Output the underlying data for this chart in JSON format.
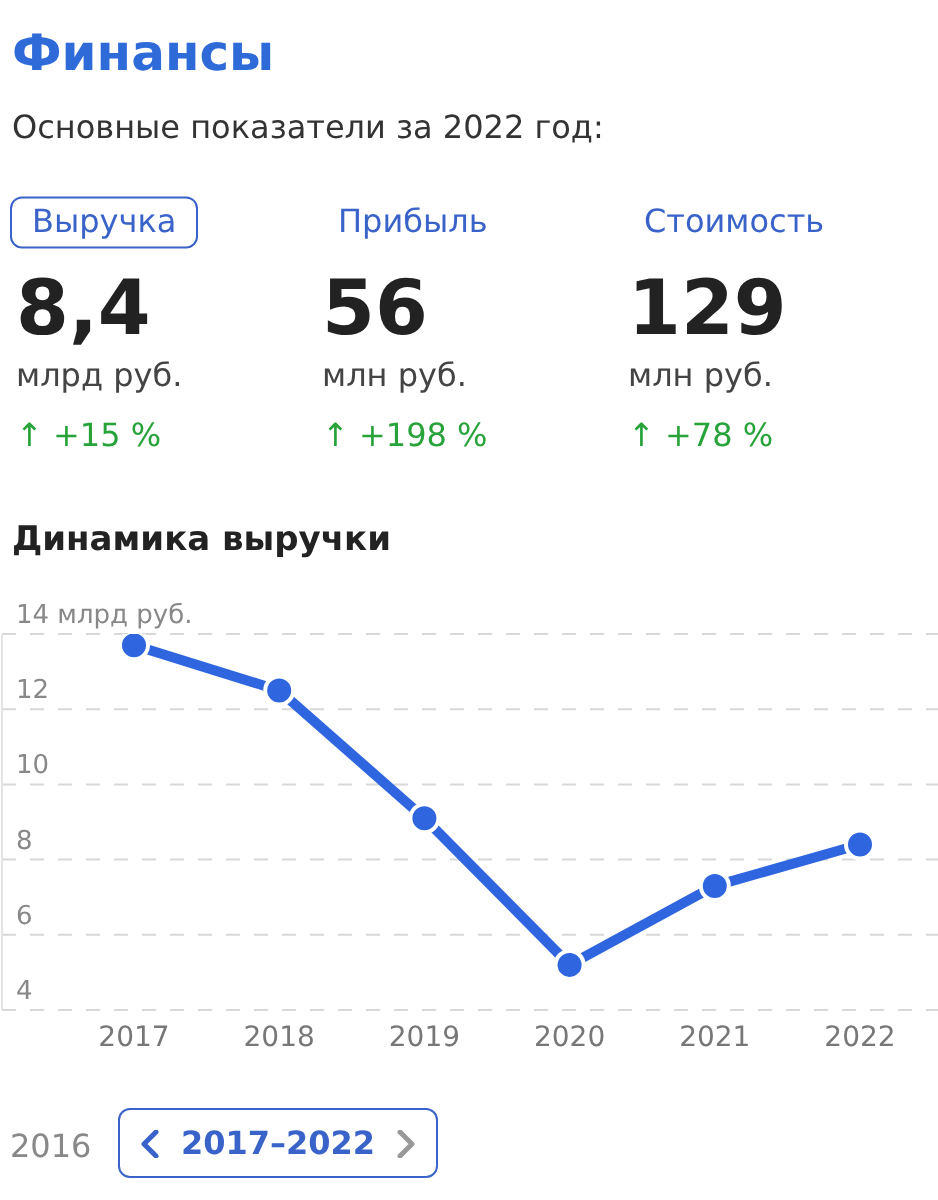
{
  "chart_data": [
    {
      "type": "other",
      "title": "Финансы",
      "subtitle": "Основные показатели за 2022 год:",
      "annotations": [
        "Выручка",
        "8,4",
        "млрд руб.",
        "↑ +15 %",
        "Прибыль",
        "56",
        "млн руб.",
        "↑ +198 %",
        "Стоимость",
        "129",
        "млн руб.",
        "↑ +78 %"
      ]
    },
    {
      "type": "line",
      "title": "Динамика выручки",
      "categories": [
        "2017",
        "2018",
        "2019",
        "2020",
        "2021",
        "2022"
      ],
      "series": [
        {
          "color": "#2f66e0",
          "values": [
            13.7,
            12.5,
            9.1,
            5.2,
            7.3,
            8.4
          ]
        }
      ],
      "ylim": [
        4,
        14
      ],
      "yticks": [
        4,
        6,
        8,
        10,
        12,
        {
          "value": 14,
          "label": "14 млрд руб."
        }
      ],
      "grid": "y",
      "marker": "circle",
      "line_style": "solid",
      "annotations": [
        "2016",
        "2017–2022"
      ]
    }
  ]
}
